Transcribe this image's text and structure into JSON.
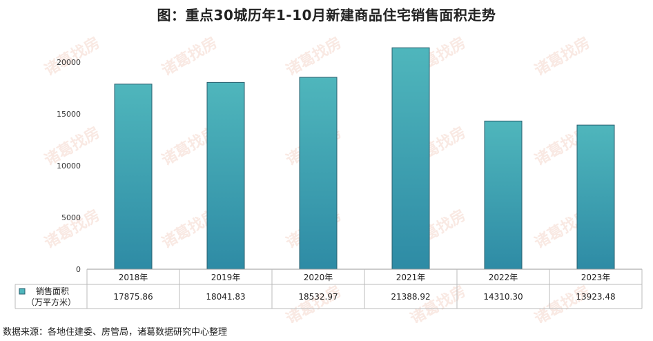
{
  "title": "图：重点30城历年1-10月新建商品住宅销售面积走势",
  "source": "数据来源：各地住建委、房管局，诸葛数据研究中心整理",
  "watermark": "诸葛找房",
  "chart_data": {
    "type": "bar",
    "categories": [
      "2018年",
      "2019年",
      "2020年",
      "2021年",
      "2022年",
      "2023年"
    ],
    "series": [
      {
        "name": "销售面积\n（万平方米）",
        "values": [
          17875.86,
          18041.83,
          18532.97,
          21388.92,
          14310.3,
          13923.48
        ],
        "value_labels": [
          "17875.86",
          "18041.83",
          "18532.97",
          "21388.92",
          "14310.30",
          "13923.48"
        ]
      }
    ],
    "ylim": [
      0,
      20000
    ],
    "yticks": [
      0,
      5000,
      10000,
      15000,
      20000
    ],
    "grid": false,
    "legend": "data-table",
    "colors": {
      "bar_top": "#4fb6bc",
      "bar_bottom": "#2e8ba5",
      "bar_border": "#2a5f6e",
      "axis": "#999999"
    }
  }
}
